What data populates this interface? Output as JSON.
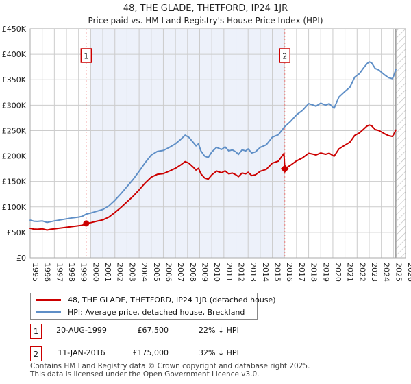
{
  "title": "48, THE GLADE, THETFORD, IP24 1JR",
  "subtitle": "Price paid vs. HM Land Registry's House Price Index (HPI)",
  "colors": {
    "property_line": "#cc0000",
    "hpi_line": "#5f8fc7",
    "grid": "#cccccc",
    "plot_border": "#aaaaaa",
    "shade": "#edf1fa",
    "sale_dash": "#f08080",
    "marker_box_border": "#cc0000",
    "hatch": "#bbbbbb"
  },
  "chart_data": {
    "type": "line",
    "x_range": [
      1995,
      2026
    ],
    "y_range": [
      0,
      450
    ],
    "ylabel_unit": "GBP thousands",
    "grid": true,
    "x_tick_labels": [
      "1995",
      "1996",
      "1997",
      "1998",
      "1999",
      "2000",
      "2001",
      "2002",
      "2003",
      "2004",
      "2005",
      "2006",
      "2007",
      "2008",
      "2009",
      "2010",
      "2011",
      "2012",
      "2013",
      "2014",
      "2015",
      "2016",
      "2017",
      "2018",
      "2019",
      "2020",
      "2021",
      "2022",
      "2023",
      "2024",
      "2025",
      "2026"
    ],
    "y_ticks": [
      {
        "v": 0,
        "label": "£0"
      },
      {
        "v": 50,
        "label": "£50K"
      },
      {
        "v": 100,
        "label": "£100K"
      },
      {
        "v": 150,
        "label": "£150K"
      },
      {
        "v": 200,
        "label": "£200K"
      },
      {
        "v": 250,
        "label": "£250K"
      },
      {
        "v": 300,
        "label": "£300K"
      },
      {
        "v": 350,
        "label": "£350K"
      },
      {
        "v": 400,
        "label": "£400K"
      },
      {
        "v": 450,
        "label": "£450K"
      }
    ],
    "shaded_period": {
      "from": 2000.0,
      "to": 2016.03
    },
    "future_hatch_from": 2025.2,
    "series": [
      {
        "name": "48, THE GLADE, THETFORD, IP24 1JR (detached house)",
        "color": "#cc0000",
        "points": [
          [
            1995.0,
            58
          ],
          [
            1995.3,
            56.5
          ],
          [
            1995.6,
            56
          ],
          [
            1996.0,
            57
          ],
          [
            1996.4,
            54.5
          ],
          [
            1996.7,
            56
          ],
          [
            1997.0,
            57
          ],
          [
            1997.5,
            58.5
          ],
          [
            1998.0,
            60
          ],
          [
            1998.5,
            61.5
          ],
          [
            1999.0,
            63
          ],
          [
            1999.3,
            64
          ],
          [
            1999.63,
            67.5
          ],
          [
            2000.0,
            69
          ],
          [
            2000.5,
            72
          ],
          [
            2001.0,
            74.5
          ],
          [
            2001.5,
            80
          ],
          [
            2002.0,
            89
          ],
          [
            2002.5,
            99
          ],
          [
            2003.0,
            110
          ],
          [
            2003.5,
            121
          ],
          [
            2004.0,
            133.5
          ],
          [
            2004.5,
            147
          ],
          [
            2005.0,
            158.5
          ],
          [
            2005.5,
            164
          ],
          [
            2006.0,
            165.5
          ],
          [
            2006.5,
            170.5
          ],
          [
            2007.0,
            176
          ],
          [
            2007.4,
            182
          ],
          [
            2007.8,
            189
          ],
          [
            2008.1,
            186
          ],
          [
            2008.5,
            177.5
          ],
          [
            2008.7,
            172.5
          ],
          [
            2008.9,
            176
          ],
          [
            2009.1,
            165
          ],
          [
            2009.4,
            157
          ],
          [
            2009.7,
            154.5
          ],
          [
            2010.0,
            163
          ],
          [
            2010.4,
            170.5
          ],
          [
            2010.8,
            167
          ],
          [
            2011.1,
            171
          ],
          [
            2011.4,
            165
          ],
          [
            2011.7,
            166.5
          ],
          [
            2012.0,
            163
          ],
          [
            2012.2,
            159.5
          ],
          [
            2012.5,
            166.5
          ],
          [
            2012.8,
            165
          ],
          [
            2013.0,
            168
          ],
          [
            2013.3,
            161.5
          ],
          [
            2013.6,
            163
          ],
          [
            2014.0,
            170
          ],
          [
            2014.5,
            174
          ],
          [
            2015.0,
            186
          ],
          [
            2015.5,
            190
          ],
          [
            2015.96,
            205
          ],
          [
            2016.03,
            175
          ],
          [
            2016.5,
            182
          ],
          [
            2017.0,
            190.5
          ],
          [
            2017.5,
            196.5
          ],
          [
            2018.0,
            205.5
          ],
          [
            2018.4,
            203.5
          ],
          [
            2018.6,
            202
          ],
          [
            2019.0,
            206
          ],
          [
            2019.4,
            203.5
          ],
          [
            2019.7,
            205.5
          ],
          [
            2020.1,
            199.5
          ],
          [
            2020.5,
            214
          ],
          [
            2021.0,
            221.5
          ],
          [
            2021.4,
            227
          ],
          [
            2021.8,
            240.5
          ],
          [
            2022.2,
            245.5
          ],
          [
            2022.5,
            252
          ],
          [
            2022.8,
            258.5
          ],
          [
            2023.0,
            261
          ],
          [
            2023.2,
            259.5
          ],
          [
            2023.5,
            252
          ],
          [
            2023.8,
            250
          ],
          [
            2024.0,
            247.5
          ],
          [
            2024.3,
            243.5
          ],
          [
            2024.6,
            240
          ],
          [
            2024.9,
            238.5
          ],
          [
            2025.0,
            241.5
          ],
          [
            2025.2,
            251
          ]
        ]
      },
      {
        "name": "HPI: Average price, detached house, Breckland",
        "color": "#5f8fc7",
        "points": [
          [
            1995.0,
            74
          ],
          [
            1995.3,
            72
          ],
          [
            1995.6,
            71.5
          ],
          [
            1996.0,
            72.5
          ],
          [
            1996.4,
            69.5
          ],
          [
            1996.7,
            71
          ],
          [
            1997.0,
            72.5
          ],
          [
            1997.5,
            74.5
          ],
          [
            1998.0,
            76.5
          ],
          [
            1998.5,
            78.5
          ],
          [
            1999.0,
            80
          ],
          [
            1999.3,
            81.5
          ],
          [
            1999.63,
            86
          ],
          [
            2000.0,
            88
          ],
          [
            2000.5,
            91.5
          ],
          [
            2001.0,
            95
          ],
          [
            2001.5,
            102
          ],
          [
            2002.0,
            113
          ],
          [
            2002.5,
            126
          ],
          [
            2003.0,
            140
          ],
          [
            2003.5,
            154
          ],
          [
            2004.0,
            170
          ],
          [
            2004.5,
            187
          ],
          [
            2005.0,
            202
          ],
          [
            2005.5,
            209
          ],
          [
            2006.0,
            211
          ],
          [
            2006.5,
            217
          ],
          [
            2007.0,
            224
          ],
          [
            2007.4,
            232
          ],
          [
            2007.8,
            241
          ],
          [
            2008.1,
            237
          ],
          [
            2008.5,
            226
          ],
          [
            2008.7,
            220
          ],
          [
            2008.9,
            224
          ],
          [
            2009.1,
            210
          ],
          [
            2009.4,
            200
          ],
          [
            2009.7,
            197
          ],
          [
            2010.0,
            208
          ],
          [
            2010.4,
            217
          ],
          [
            2010.8,
            213
          ],
          [
            2011.1,
            218
          ],
          [
            2011.4,
            210
          ],
          [
            2011.7,
            212
          ],
          [
            2012.0,
            208
          ],
          [
            2012.2,
            203
          ],
          [
            2012.5,
            212
          ],
          [
            2012.8,
            210
          ],
          [
            2013.0,
            214
          ],
          [
            2013.3,
            206
          ],
          [
            2013.6,
            208
          ],
          [
            2014.0,
            217
          ],
          [
            2014.5,
            222
          ],
          [
            2015.0,
            237
          ],
          [
            2015.5,
            242
          ],
          [
            2016.03,
            258
          ],
          [
            2016.5,
            268
          ],
          [
            2017.0,
            281
          ],
          [
            2017.5,
            290
          ],
          [
            2018.0,
            303
          ],
          [
            2018.4,
            300
          ],
          [
            2018.6,
            298
          ],
          [
            2019.0,
            304
          ],
          [
            2019.4,
            300
          ],
          [
            2019.7,
            303
          ],
          [
            2020.1,
            294
          ],
          [
            2020.5,
            316
          ],
          [
            2021.0,
            327
          ],
          [
            2021.4,
            335
          ],
          [
            2021.8,
            355
          ],
          [
            2022.2,
            362
          ],
          [
            2022.5,
            372
          ],
          [
            2022.8,
            381
          ],
          [
            2023.0,
            385
          ],
          [
            2023.2,
            383
          ],
          [
            2023.5,
            372
          ],
          [
            2023.8,
            369
          ],
          [
            2024.0,
            365
          ],
          [
            2024.3,
            359
          ],
          [
            2024.6,
            354
          ],
          [
            2024.9,
            352
          ],
          [
            2025.0,
            356
          ],
          [
            2025.2,
            370
          ]
        ]
      }
    ],
    "sales": [
      {
        "num": "1",
        "date_frac": 1999.63,
        "price_k": 67.5,
        "marker": "circle"
      },
      {
        "num": "2",
        "date_frac": 2016.03,
        "price_k": 175,
        "marker": "diamond"
      }
    ]
  },
  "legend": {
    "items": [
      {
        "label": "48, THE GLADE, THETFORD, IP24 1JR (detached house)",
        "color": "#cc0000"
      },
      {
        "label": "HPI: Average price, detached house, Breckland",
        "color": "#5f8fc7"
      }
    ]
  },
  "transactions": [
    {
      "num": "1",
      "date": "20-AUG-1999",
      "price": "£67,500",
      "vs_hpi": "22% ↓ HPI"
    },
    {
      "num": "2",
      "date": "11-JAN-2016",
      "price": "£175,000",
      "vs_hpi": "32% ↓ HPI"
    }
  ],
  "footer": {
    "line1": "Contains HM Land Registry data © Crown copyright and database right 2025.",
    "line2": "This data is licensed under the Open Government Licence v3.0."
  }
}
